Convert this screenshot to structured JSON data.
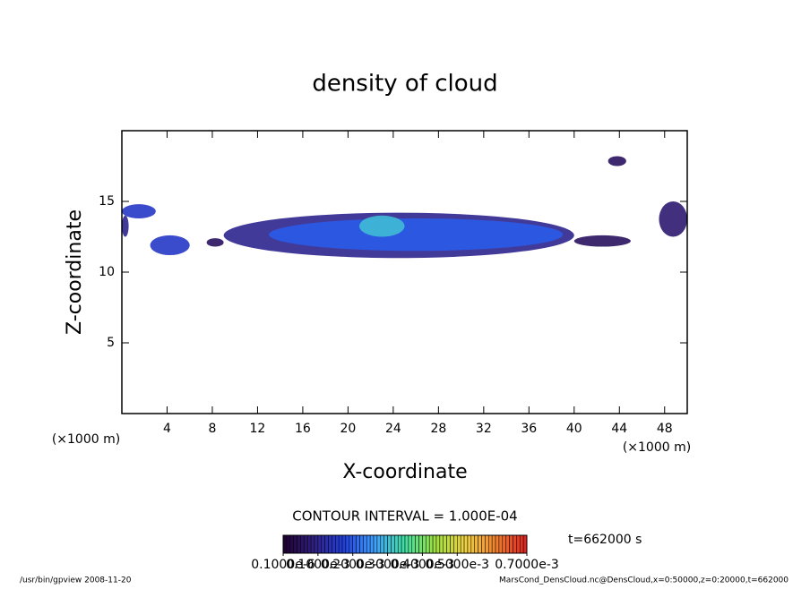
{
  "chart_data": {
    "type": "contour",
    "title": "density of cloud",
    "x_label": "X-coordinate",
    "y_label": "Z-coordinate",
    "x_unit": "(×1000 m)",
    "y_unit": "(×1000 m)",
    "xlim": [
      0,
      50
    ],
    "xticks": [
      4,
      8,
      12,
      16,
      20,
      24,
      28,
      32,
      36,
      40,
      44,
      48
    ],
    "ylim": [
      0,
      20
    ],
    "yticks": [
      5,
      10,
      15
    ],
    "cloud": [
      {
        "x": [
          0,
          3
        ],
        "z": [
          13.8,
          14.8
        ],
        "value": 0.00015
      },
      {
        "x": [
          0,
          0.6
        ],
        "z": [
          12.5,
          14
        ],
        "value": 0.0001
      },
      {
        "x": [
          2.5,
          6
        ],
        "z": [
          11.2,
          12.6
        ],
        "value": 0.00015
      },
      {
        "x": [
          7.5,
          9
        ],
        "z": [
          11.8,
          12.4
        ],
        "value": 5e-05
      },
      {
        "x": [
          9,
          40
        ],
        "z": [
          11,
          14.2
        ],
        "value": 0.0001
      },
      {
        "x": [
          13,
          39
        ],
        "z": [
          11.5,
          13.8
        ],
        "value": 0.0002
      },
      {
        "x": [
          21,
          25
        ],
        "z": [
          12.5,
          14
        ],
        "value": 0.0003
      },
      {
        "x": [
          40,
          45
        ],
        "z": [
          11.8,
          12.6
        ],
        "value": 5e-05
      },
      {
        "x": [
          43,
          44.6
        ],
        "z": [
          17.5,
          18.2
        ],
        "value": 5e-05
      },
      {
        "x": [
          47.5,
          50
        ],
        "z": [
          12.5,
          15
        ],
        "value": 7e-05
      }
    ],
    "contour_interval": "CONTOUR INTERVAL = 1.000E-04",
    "time": "t=662000 s",
    "clim": [
      0,
      0.0007
    ],
    "colormap": [
      "#200030",
      "#302080",
      "#2040e0",
      "#40a0ff",
      "#40e0a0",
      "#a0e040",
      "#f0d040",
      "#f08030",
      "#e02020"
    ],
    "cticks": [
      {
        "value": 1e-07,
        "label": "0.1000e-6"
      },
      {
        "value": 0.0001,
        "label": "0.1000e-3"
      },
      {
        "value": 0.0002,
        "label": "0.2000e-3"
      },
      {
        "value": 0.0003,
        "label": "0.3000e-3"
      },
      {
        "value": 0.0004,
        "label": "0.4000e-3"
      },
      {
        "value": 0.0005,
        "label": "0.5000e-3"
      },
      {
        "value": 0.0007,
        "label": "0.7000e-3"
      }
    ],
    "footer_left": "/usr/bin/gpview  2008-11-20",
    "footer_right": "MarsCond_DensCloud.nc@DensCloud,x=0:50000,z=0:20000,t=662000"
  }
}
